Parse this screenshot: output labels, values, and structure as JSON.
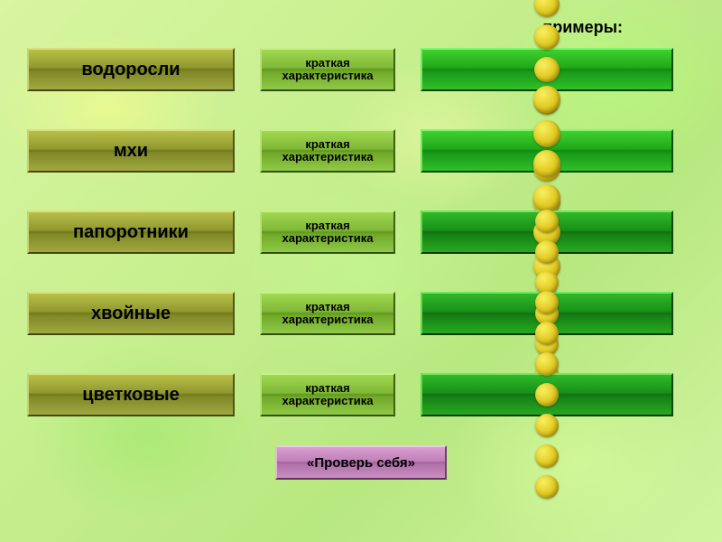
{
  "header": {
    "label": "примеры:"
  },
  "rows": [
    {
      "category": "водоросли",
      "category_bg": "linear-gradient(to bottom, #b8c048 0%, #909830 45%, #707818 50%, #808828 55%, #a0a840 100%)",
      "category_border_top": "#d8e080",
      "category_border_left": "#c8d070",
      "category_border_bottom": "#404810",
      "category_border_right": "#505818",
      "desc": "краткая\nхарактеристика",
      "desc_bg": "linear-gradient(to bottom, #a0d850 0%, #80b838 45%, #609820 50%, #70a828 55%, #90c848 100%)",
      "desc_border_top": "#c8f088",
      "desc_border_left": "#b8e078",
      "desc_border_bottom": "#305010",
      "desc_border_right": "#406018",
      "examples_bg": "linear-gradient(to bottom, #40d030 0%, #20a818 45%, #108810 50%, #189818 55%, #30c028 100%)",
      "examples_border_top": "#80f870",
      "examples_border_left": "#70e860",
      "examples_border_bottom": "#084008",
      "examples_border_right": "#105010",
      "dot_count": 5,
      "dot_size": 28
    },
    {
      "category": "мхи",
      "category_bg": "linear-gradient(to bottom, #b8c048 0%, #909830 45%, #707818 50%, #808828 55%, #a0a840 100%)",
      "category_border_top": "#d8e080",
      "category_border_left": "#c8d070",
      "category_border_bottom": "#404810",
      "category_border_right": "#505818",
      "desc": "краткая\nхарактеристика",
      "desc_bg": "linear-gradient(to bottom, #a0d850 0%, #80b838 45%, #609820 50%, #70a828 55%, #90c848 100%)",
      "desc_border_top": "#c8f088",
      "desc_border_left": "#b8e078",
      "desc_border_bottom": "#305010",
      "desc_border_right": "#406018",
      "examples_bg": "linear-gradient(to bottom, #40d030 0%, #20a818 45%, #108810 50%, #189818 55%, #30c028 100%)",
      "examples_border_top": "#80f870",
      "examples_border_left": "#70e860",
      "examples_border_bottom": "#084008",
      "examples_border_right": "#105010",
      "dot_count": 4,
      "dot_size": 30
    },
    {
      "category": "папоротники",
      "category_bg": "linear-gradient(to bottom, #b8c048 0%, #909830 45%, #707818 50%, #808828 55%, #a0a840 100%)",
      "category_border_top": "#d8e080",
      "category_border_left": "#c8d070",
      "category_border_bottom": "#404810",
      "category_border_right": "#505818",
      "desc": "краткая\nхарактеристика",
      "desc_bg": "linear-gradient(to bottom, #a0d850 0%, #80b838 45%, #609820 50%, #70a828 55%, #90c848 100%)",
      "desc_border_top": "#c8f088",
      "desc_border_left": "#b8e078",
      "desc_border_bottom": "#305010",
      "desc_border_right": "#406018",
      "examples_bg": "linear-gradient(to bottom, #30b828 0%, #189018 45%, #107010 50%, #148014 55%, #28a820 100%)",
      "examples_border_top": "#70e860",
      "examples_border_left": "#60d850",
      "examples_border_bottom": "#083808",
      "examples_border_right": "#104810",
      "dot_count": 5,
      "dot_size": 30
    },
    {
      "category": "хвойные",
      "category_bg": "linear-gradient(to bottom, #b8c048 0%, #909830 45%, #707818 50%, #808828 55%, #a0a840 100%)",
      "category_border_top": "#d8e080",
      "category_border_left": "#c8d070",
      "category_border_bottom": "#404810",
      "category_border_right": "#505818",
      "desc": "краткая\nхарактеристика",
      "desc_bg": "linear-gradient(to bottom, #a0d850 0%, #80b838 45%, #609820 50%, #70a828 55%, #90c848 100%)",
      "desc_border_top": "#c8f088",
      "desc_border_left": "#b8e078",
      "desc_border_bottom": "#305010",
      "desc_border_right": "#406018",
      "examples_bg": "linear-gradient(to bottom, #30b828 0%, #189018 45%, #107010 50%, #148014 55%, #28a820 100%)",
      "examples_border_top": "#70e860",
      "examples_border_left": "#60d850",
      "examples_border_bottom": "#083808",
      "examples_border_right": "#104810",
      "dot_count": 7,
      "dot_size": 26
    },
    {
      "category": "цветковые",
      "category_bg": "linear-gradient(to bottom, #b8c048 0%, #909830 45%, #707818 50%, #808828 55%, #a0a840 100%)",
      "category_border_top": "#d8e080",
      "category_border_left": "#c8d070",
      "category_border_bottom": "#404810",
      "category_border_right": "#505818",
      "desc": "краткая\nхарактеристика",
      "desc_bg": "linear-gradient(to bottom, #a0d850 0%, #80b838 45%, #609820 50%, #70a828 55%, #90c848 100%)",
      "desc_border_top": "#c8f088",
      "desc_border_left": "#b8e078",
      "desc_border_bottom": "#305010",
      "desc_border_right": "#406018",
      "examples_bg": "linear-gradient(to bottom, #30b828 0%, #189018 45%, #107010 50%, #148014 55%, #28a820 100%)",
      "examples_border_top": "#70e860",
      "examples_border_left": "#60d850",
      "examples_border_bottom": "#083808",
      "examples_border_right": "#104810",
      "dot_count": 7,
      "dot_size": 26
    }
  ],
  "check": {
    "label": "«Проверь себя»",
    "bg": "linear-gradient(to bottom, #d8a0d0 0%, #c080b8 45%, #a06098 50%, #b070a8 55%, #c890c0 100%)",
    "border_top": "#f0c8e8",
    "border_left": "#e0b8d8",
    "border_bottom": "#603058",
    "border_right": "#704068"
  }
}
